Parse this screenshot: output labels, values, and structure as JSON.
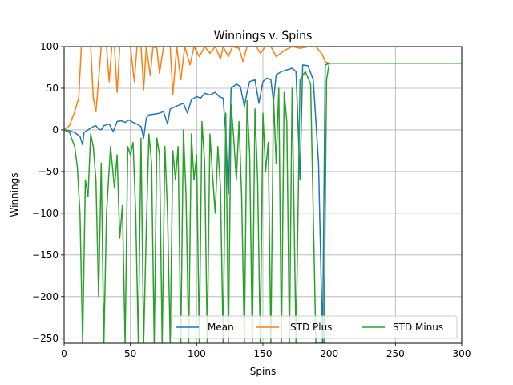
{
  "chart_data": {
    "type": "line",
    "title": "Winnings v. Spins",
    "xlabel": "Spins",
    "ylabel": "Winnings",
    "xlim": [
      0,
      300
    ],
    "ylim": [
      -256,
      100
    ],
    "xticks": [
      0,
      50,
      100,
      150,
      200,
      250,
      300
    ],
    "yticks": [
      -250,
      -200,
      -150,
      -100,
      -50,
      0,
      50,
      100
    ],
    "ytick_labels": [
      "−250",
      "−200",
      "−150",
      "−100",
      "−50",
      "0",
      "50",
      "100"
    ],
    "grid": true,
    "legend_position": "lower-right",
    "series": [
      {
        "name": "Mean",
        "color": "#1f77b4",
        "points": [
          [
            0,
            0
          ],
          [
            4,
            -1
          ],
          [
            8,
            -3
          ],
          [
            12,
            -8
          ],
          [
            14,
            -18
          ],
          [
            15,
            -3
          ],
          [
            18,
            0
          ],
          [
            22,
            4
          ],
          [
            24,
            5
          ],
          [
            26,
            1
          ],
          [
            28,
            0
          ],
          [
            30,
            5
          ],
          [
            34,
            7
          ],
          [
            37,
            -2
          ],
          [
            40,
            10
          ],
          [
            43,
            11
          ],
          [
            46,
            9
          ],
          [
            49,
            12
          ],
          [
            52,
            9
          ],
          [
            55,
            7
          ],
          [
            58,
            4
          ],
          [
            60,
            -10
          ],
          [
            62,
            14
          ],
          [
            64,
            18
          ],
          [
            68,
            19
          ],
          [
            72,
            20
          ],
          [
            75,
            22
          ],
          [
            78,
            7
          ],
          [
            80,
            25
          ],
          [
            84,
            28
          ],
          [
            87,
            30
          ],
          [
            90,
            32
          ],
          [
            93,
            20
          ],
          [
            96,
            36
          ],
          [
            100,
            40
          ],
          [
            103,
            38
          ],
          [
            106,
            44
          ],
          [
            110,
            42
          ],
          [
            114,
            45
          ],
          [
            117,
            40
          ],
          [
            120,
            38
          ],
          [
            122,
            -5
          ],
          [
            124,
            -77
          ],
          [
            126,
            50
          ],
          [
            130,
            55
          ],
          [
            133,
            52
          ],
          [
            136,
            28
          ],
          [
            138,
            45
          ],
          [
            140,
            58
          ],
          [
            144,
            60
          ],
          [
            147,
            32
          ],
          [
            150,
            58
          ],
          [
            153,
            62
          ],
          [
            156,
            60
          ],
          [
            158,
            34
          ],
          [
            160,
            66
          ],
          [
            164,
            70
          ],
          [
            168,
            72
          ],
          [
            172,
            74
          ],
          [
            175,
            70
          ],
          [
            178,
            -59
          ],
          [
            180,
            78
          ],
          [
            184,
            77
          ],
          [
            188,
            60
          ],
          [
            192,
            -40
          ],
          [
            195,
            -256
          ],
          [
            197,
            78
          ],
          [
            200,
            80
          ],
          [
            300,
            80
          ]
        ]
      },
      {
        "name": "STD Plus",
        "color": "#ff7f0e",
        "points": [
          [
            0,
            0
          ],
          [
            4,
            5
          ],
          [
            8,
            22
          ],
          [
            11,
            38
          ],
          [
            13,
            100
          ],
          [
            20,
            100
          ],
          [
            22,
            38
          ],
          [
            24,
            22
          ],
          [
            26,
            60
          ],
          [
            28,
            100
          ],
          [
            32,
            100
          ],
          [
            34,
            58
          ],
          [
            36,
            100
          ],
          [
            38,
            100
          ],
          [
            40,
            45
          ],
          [
            42,
            100
          ],
          [
            50,
            100
          ],
          [
            53,
            58
          ],
          [
            55,
            100
          ],
          [
            58,
            100
          ],
          [
            60,
            48
          ],
          [
            62,
            100
          ],
          [
            65,
            65
          ],
          [
            67,
            100
          ],
          [
            70,
            98
          ],
          [
            72,
            68
          ],
          [
            75,
            100
          ],
          [
            80,
            100
          ],
          [
            82,
            42
          ],
          [
            85,
            100
          ],
          [
            88,
            60
          ],
          [
            91,
            100
          ],
          [
            95,
            78
          ],
          [
            98,
            100
          ],
          [
            102,
            88
          ],
          [
            106,
            100
          ],
          [
            110,
            92
          ],
          [
            114,
            100
          ],
          [
            118,
            85
          ],
          [
            120,
            100
          ],
          [
            124,
            88
          ],
          [
            127,
            100
          ],
          [
            132,
            98
          ],
          [
            135,
            82
          ],
          [
            138,
            100
          ],
          [
            145,
            100
          ],
          [
            148,
            92
          ],
          [
            152,
            100
          ],
          [
            156,
            100
          ],
          [
            160,
            88
          ],
          [
            166,
            95
          ],
          [
            172,
            100
          ],
          [
            178,
            98
          ],
          [
            185,
            100
          ],
          [
            190,
            100
          ],
          [
            195,
            90
          ],
          [
            197,
            82
          ],
          [
            200,
            80
          ],
          [
            210,
            80
          ],
          [
            300,
            80
          ]
        ]
      },
      {
        "name": "STD Minus",
        "color": "#2ca02c",
        "points": [
          [
            0,
            0
          ],
          [
            4,
            -3
          ],
          [
            8,
            -20
          ],
          [
            10,
            -45
          ],
          [
            12,
            -100
          ],
          [
            14,
            -256
          ],
          [
            16,
            -60
          ],
          [
            18,
            -80
          ],
          [
            20,
            -5
          ],
          [
            22,
            -20
          ],
          [
            24,
            -60
          ],
          [
            26,
            -200
          ],
          [
            28,
            -40
          ],
          [
            30,
            -256
          ],
          [
            32,
            -100
          ],
          [
            35,
            -20
          ],
          [
            38,
            -70
          ],
          [
            40,
            -30
          ],
          [
            42,
            -130
          ],
          [
            44,
            -90
          ],
          [
            46,
            -256
          ],
          [
            48,
            -20
          ],
          [
            50,
            -30
          ],
          [
            52,
            -15
          ],
          [
            54,
            -100
          ],
          [
            56,
            -256
          ],
          [
            58,
            -10
          ],
          [
            60,
            -256
          ],
          [
            62,
            -120
          ],
          [
            64,
            -5
          ],
          [
            66,
            -40
          ],
          [
            68,
            -256
          ],
          [
            70,
            -10
          ],
          [
            72,
            -30
          ],
          [
            74,
            -256
          ],
          [
            76,
            -20
          ],
          [
            78,
            -100
          ],
          [
            80,
            -256
          ],
          [
            82,
            -25
          ],
          [
            84,
            -60
          ],
          [
            86,
            -20
          ],
          [
            88,
            -256
          ],
          [
            90,
            0
          ],
          [
            92,
            -80
          ],
          [
            94,
            -256
          ],
          [
            96,
            -5
          ],
          [
            98,
            -60
          ],
          [
            100,
            -30
          ],
          [
            102,
            -256
          ],
          [
            104,
            10
          ],
          [
            106,
            -40
          ],
          [
            108,
            -256
          ],
          [
            110,
            -5
          ],
          [
            112,
            -55
          ],
          [
            114,
            -100
          ],
          [
            116,
            -20
          ],
          [
            118,
            -70
          ],
          [
            120,
            -256
          ],
          [
            122,
            20
          ],
          [
            124,
            -256
          ],
          [
            126,
            30
          ],
          [
            128,
            -10
          ],
          [
            130,
            -60
          ],
          [
            132,
            10
          ],
          [
            134,
            -80
          ],
          [
            136,
            -256
          ],
          [
            138,
            35
          ],
          [
            140,
            -30
          ],
          [
            142,
            -256
          ],
          [
            144,
            25
          ],
          [
            146,
            -60
          ],
          [
            148,
            -256
          ],
          [
            150,
            20
          ],
          [
            152,
            -50
          ],
          [
            154,
            -15
          ],
          [
            156,
            -256
          ],
          [
            158,
            40
          ],
          [
            160,
            -40
          ],
          [
            162,
            50
          ],
          [
            164,
            -256
          ],
          [
            166,
            45
          ],
          [
            168,
            10
          ],
          [
            170,
            -256
          ],
          [
            172,
            50
          ],
          [
            175,
            -256
          ],
          [
            178,
            60
          ],
          [
            182,
            70
          ],
          [
            186,
            55
          ],
          [
            190,
            -256
          ],
          [
            196,
            -256
          ],
          [
            198,
            60
          ],
          [
            200,
            80
          ],
          [
            300,
            80
          ]
        ]
      }
    ]
  }
}
